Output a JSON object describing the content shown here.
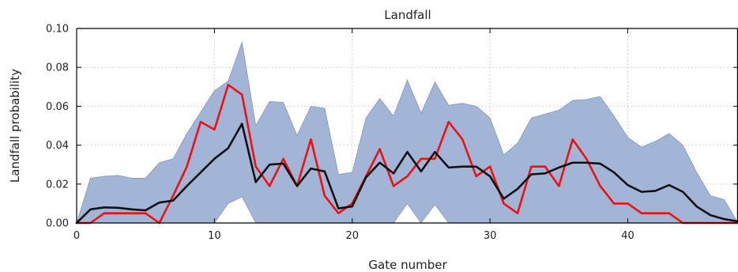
{
  "chart_data": {
    "type": "line",
    "title": "Landfall",
    "xlabel": "Gate number",
    "ylabel": "Landfall probability",
    "xlim": [
      0,
      48
    ],
    "ylim": [
      0,
      0.1
    ],
    "xticks": [
      0,
      10,
      20,
      30,
      40
    ],
    "yticks": [
      0.0,
      0.02,
      0.04,
      0.06,
      0.08,
      0.1
    ],
    "xtick_labels": [
      "0",
      "10",
      "20",
      "30",
      "40"
    ],
    "ytick_labels": [
      "0.00",
      "0.02",
      "0.04",
      "0.06",
      "0.08",
      "0.10"
    ],
    "grid": true,
    "x": [
      0,
      1,
      2,
      3,
      4,
      5,
      6,
      7,
      8,
      9,
      10,
      11,
      12,
      13,
      14,
      15,
      16,
      17,
      18,
      19,
      20,
      21,
      22,
      23,
      24,
      25,
      26,
      27,
      28,
      29,
      30,
      31,
      32,
      33,
      34,
      35,
      36,
      37,
      38,
      39,
      40,
      41,
      42,
      43,
      44,
      45,
      46,
      47,
      48
    ],
    "band": {
      "color": "#a3b5d6",
      "upper": [
        0.0,
        0.023,
        0.024,
        0.0245,
        0.023,
        0.023,
        0.031,
        0.033,
        0.046,
        0.057,
        0.068,
        0.073,
        0.093,
        0.05,
        0.0625,
        0.062,
        0.045,
        0.06,
        0.059,
        0.025,
        0.026,
        0.054,
        0.064,
        0.055,
        0.0735,
        0.0565,
        0.0725,
        0.0605,
        0.0615,
        0.06,
        0.054,
        0.035,
        0.041,
        0.054,
        0.056,
        0.058,
        0.063,
        0.0635,
        0.065,
        0.055,
        0.044,
        0.039,
        0.042,
        0.046,
        0.04,
        0.026,
        0.014,
        0.012,
        0.0
      ],
      "lower": [
        0.0,
        0.0,
        0.0,
        0.0,
        0.0,
        0.0,
        0.0,
        0.0,
        0.0,
        0.0,
        0.0,
        0.01,
        0.0135,
        0.0,
        0.0,
        0.0,
        0.0,
        0.0,
        0.0,
        0.0,
        0.0,
        0.0,
        0.0,
        0.0,
        0.01,
        0.0,
        0.0095,
        0.0,
        0.0,
        0.0,
        0.0,
        0.0,
        0.0,
        0.0,
        0.0,
        0.0,
        0.0,
        0.0,
        0.0,
        0.0,
        0.0,
        0.0,
        0.0,
        0.0,
        0.0,
        0.0,
        0.0,
        0.0,
        0.0
      ]
    },
    "series": [
      {
        "color": "#ee1111",
        "values": [
          0.0,
          0.0,
          0.005,
          0.005,
          0.005,
          0.005,
          0.0,
          0.014,
          0.029,
          0.052,
          0.048,
          0.071,
          0.066,
          0.029,
          0.019,
          0.033,
          0.019,
          0.043,
          0.014,
          0.005,
          0.01,
          0.024,
          0.038,
          0.019,
          0.024,
          0.033,
          0.033,
          0.052,
          0.043,
          0.024,
          0.029,
          0.01,
          0.005,
          0.029,
          0.029,
          0.019,
          0.043,
          0.033,
          0.019,
          0.01,
          0.01,
          0.005,
          0.005,
          0.005,
          0.0,
          0.0,
          0.0,
          0.0,
          0.0
        ]
      },
      {
        "color": "#111111",
        "values": [
          0.0,
          0.007,
          0.008,
          0.0078,
          0.007,
          0.0065,
          0.0105,
          0.0115,
          0.019,
          0.026,
          0.033,
          0.0385,
          0.051,
          0.021,
          0.03,
          0.0305,
          0.019,
          0.028,
          0.0265,
          0.0075,
          0.0085,
          0.0235,
          0.031,
          0.0255,
          0.0365,
          0.0265,
          0.0365,
          0.0285,
          0.029,
          0.029,
          0.024,
          0.0125,
          0.0175,
          0.025,
          0.0255,
          0.0285,
          0.031,
          0.031,
          0.0305,
          0.026,
          0.0195,
          0.016,
          0.0165,
          0.0195,
          0.016,
          0.0085,
          0.004,
          0.002,
          0.0008
        ]
      }
    ]
  }
}
